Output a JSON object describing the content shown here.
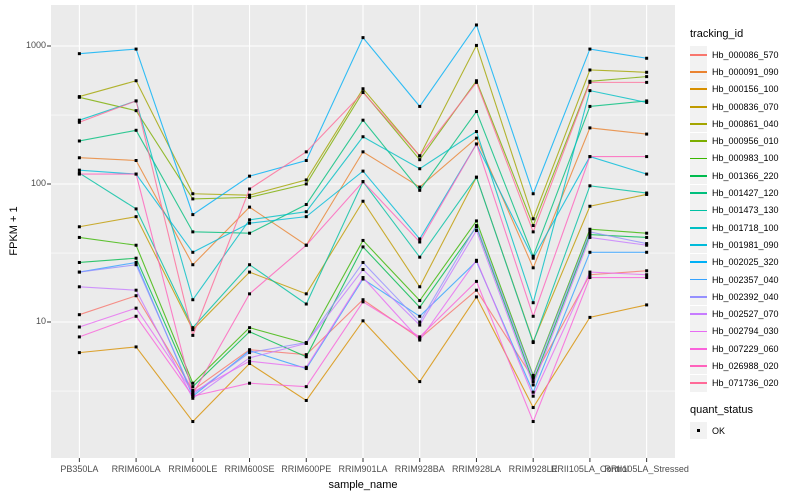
{
  "chart_data": {
    "type": "line",
    "xlabel": "sample_name",
    "ylabel": "FPKM + 1",
    "yscale": "log10",
    "yticks": [
      10,
      100,
      1000
    ],
    "yminor": [
      3.16,
      31.6,
      316
    ],
    "ylim_approx": [
      1,
      2000
    ],
    "grid": true,
    "panel_bg": "#EBEBEB",
    "grid_color": "#FFFFFF",
    "point_color": "#000000",
    "tick_text_color": "#4d4d4d",
    "legend_title": "tracking_id",
    "legend_position": "right",
    "quant_legend": {
      "title": "quant_status",
      "items": [
        "OK"
      ]
    },
    "categories": [
      "PB350LA",
      "RRIM600LA",
      "RRIM600LE",
      "RRIM600SE",
      "RRIM600PE",
      "RRIM901LA",
      "RRIM928BA",
      "RRIM928LA",
      "RRIM928LE",
      "RRII105LA_Control",
      "RRII105LA_Stressed"
    ],
    "series": [
      {
        "name": "Hb_000086_570",
        "color": "#F8766D",
        "values": [
          11.3,
          15.5,
          3.2,
          6.3,
          5.8,
          14.5,
          7.6,
          17,
          3.9,
          22,
          23.5
        ]
      },
      {
        "name": "Hb_000091_090",
        "color": "#EA8331",
        "values": [
          155,
          148,
          26,
          68,
          36,
          171,
          95,
          215,
          24.7,
          255,
          230
        ]
      },
      {
        "name": "Hb_000156_100",
        "color": "#D89000",
        "values": [
          6.0,
          6.6,
          1.9,
          5.0,
          2.7,
          10.2,
          3.7,
          15.2,
          2.4,
          10.8,
          13.3
        ]
      },
      {
        "name": "Hb_000836_070",
        "color": "#C09B00",
        "values": [
          49,
          58,
          8.8,
          23,
          16,
          75,
          18,
          112,
          7.2,
          69,
          84
        ]
      },
      {
        "name": "Hb_000861_040",
        "color": "#A3A500",
        "values": [
          430,
          560,
          85,
          83,
          107,
          490,
          160,
          1010,
          56,
          670,
          645
        ]
      },
      {
        "name": "Hb_000956_010",
        "color": "#7CAE00",
        "values": [
          425,
          340,
          78,
          80,
          100,
          465,
          150,
          560,
          50,
          555,
          600
        ]
      },
      {
        "name": "Hb_000983_100",
        "color": "#39B600",
        "values": [
          41,
          36,
          3.6,
          9.1,
          7.0,
          39,
          14.3,
          54,
          4.1,
          47,
          44
        ]
      },
      {
        "name": "Hb_001366_220",
        "color": "#00BB4E",
        "values": [
          27,
          29,
          3.4,
          8.5,
          5.6,
          35,
          12.8,
          49,
          3.7,
          43,
          41
        ]
      },
      {
        "name": "Hb_001427_120",
        "color": "#00BF7D",
        "values": [
          205,
          245,
          45,
          44,
          71,
          290,
          90,
          335,
          30,
          365,
          400
        ]
      },
      {
        "name": "Hb_001473_130",
        "color": "#00C1A3",
        "values": [
          120,
          66,
          9.1,
          26,
          13.5,
          104,
          29.5,
          112,
          7.1,
          97,
          86
        ]
      },
      {
        "name": "Hb_001718_100",
        "color": "#00BFC4",
        "values": [
          290,
          400,
          14.5,
          55,
          63,
          220,
          129,
          240,
          13.8,
          475,
          390
        ]
      },
      {
        "name": "Hb_001981_090",
        "color": "#00BBDA",
        "values": [
          126,
          118,
          32,
          52,
          58,
          124,
          40,
          195,
          29,
          158,
          118
        ]
      },
      {
        "name": "Hb_002025_320",
        "color": "#00B0F6",
        "values": [
          880,
          950,
          60,
          114,
          148,
          1150,
          365,
          1420,
          85,
          950,
          815
        ]
      },
      {
        "name": "Hb_002357_040",
        "color": "#35A2FF",
        "values": [
          23,
          27,
          2.9,
          6.2,
          4.6,
          20.5,
          11,
          27.5,
          3.1,
          32,
          32
        ]
      },
      {
        "name": "Hb_002392_040",
        "color": "#9590FF",
        "values": [
          23,
          26,
          3.0,
          6.0,
          7.1,
          27,
          10,
          50,
          4.0,
          45,
          37
        ]
      },
      {
        "name": "Hb_002527_070",
        "color": "#C77CFF",
        "values": [
          18,
          17,
          2.8,
          5.5,
          7.0,
          24,
          9.5,
          46,
          3.5,
          41,
          36
        ]
      },
      {
        "name": "Hb_002794_030",
        "color": "#E76BF3",
        "values": [
          9.2,
          12.6,
          3.1,
          5.2,
          4.7,
          21,
          7.4,
          28,
          2.9,
          23,
          22
        ]
      },
      {
        "name": "Hb_007229_060",
        "color": "#FA62DB",
        "values": [
          7.8,
          11,
          2.9,
          3.6,
          3.4,
          14,
          7.8,
          19.7,
          1.9,
          21,
          21
        ]
      },
      {
        "name": "Hb_026988_020",
        "color": "#FF62BC",
        "values": [
          118,
          118,
          3.0,
          16,
          36,
          104,
          38,
          195,
          11,
          158,
          158
        ]
      },
      {
        "name": "Hb_071736_020",
        "color": "#FF6A98",
        "values": [
          280,
          400,
          8.0,
          92,
          171,
          460,
          160,
          545,
          45,
          545,
          545
        ]
      }
    ]
  }
}
